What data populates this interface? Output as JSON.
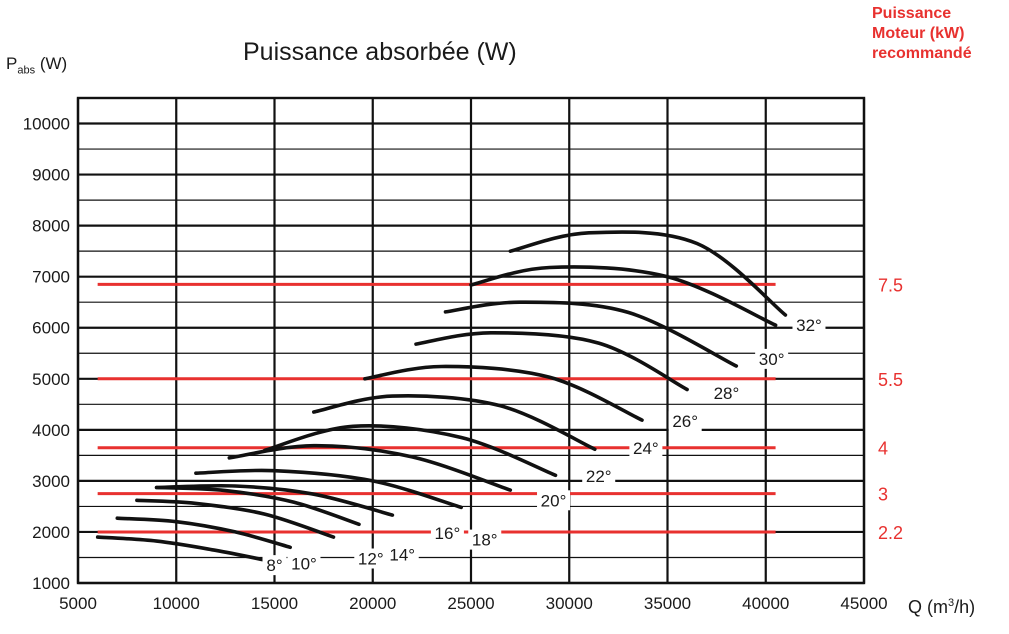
{
  "chart_data": {
    "type": "line",
    "title": "Puissance absorbée (W)",
    "ylabel": {
      "main": "P",
      "sub": "abs",
      "unit": " (W)"
    },
    "xlabel": {
      "main": "Q (m",
      "sup": "3",
      "unit": "/h)"
    },
    "side_title": [
      "Puissance",
      "Moteur (kW)",
      "recommandé"
    ],
    "xlim": [
      5000,
      45000
    ],
    "ylim": [
      1000,
      10500
    ],
    "x_ticks": [
      5000,
      10000,
      15000,
      20000,
      25000,
      30000,
      35000,
      40000,
      45000
    ],
    "x_tick_labels": [
      "5000",
      "10000",
      "15000",
      "20000",
      "25000",
      "30000",
      "35000",
      "40000",
      "45000"
    ],
    "y_ticks": [
      1000,
      2000,
      3000,
      4000,
      5000,
      6000,
      7000,
      8000,
      9000,
      10000
    ],
    "y_tick_labels": [
      "1000",
      "2000",
      "3000",
      "4000",
      "5000",
      "6000",
      "7000",
      "8000",
      "9000",
      "10000"
    ],
    "y_minor_step": 500,
    "series": [
      {
        "name": "8°",
        "x": [
          6000,
          9000,
          12000,
          14500
        ],
        "y": [
          1900,
          1820,
          1640,
          1450
        ],
        "label_at": [
          15000,
          1350
        ]
      },
      {
        "name": "10°",
        "x": [
          7000,
          10000,
          13000,
          15800
        ],
        "y": [
          2270,
          2200,
          2000,
          1700
        ],
        "label_at": [
          16500,
          1380
        ]
      },
      {
        "name": "12°",
        "x": [
          8000,
          11000,
          14500,
          18000
        ],
        "y": [
          2620,
          2560,
          2350,
          1900
        ],
        "label_at": [
          19900,
          1480
        ]
      },
      {
        "name": "14°",
        "x": [
          9000,
          12500,
          16000,
          19300
        ],
        "y": [
          2870,
          2810,
          2580,
          2150
        ],
        "label_at": [
          21500,
          1560
        ]
      },
      {
        "name": "16°",
        "x": [
          9000,
          13000,
          17000,
          21000
        ],
        "y": [
          2870,
          2900,
          2740,
          2330
        ],
        "label_at": [
          23800,
          1980
        ]
      },
      {
        "name": "18°",
        "x": [
          11000,
          15000,
          20000,
          24500
        ],
        "y": [
          3150,
          3200,
          3000,
          2480
        ],
        "label_at": [
          25700,
          1850
        ]
      },
      {
        "name": "20°",
        "x": [
          12700,
          17000,
          22000,
          27000
        ],
        "y": [
          3450,
          3690,
          3470,
          2820
        ],
        "label_at": [
          29200,
          2620
        ]
      },
      {
        "name": "22°",
        "x": [
          14500,
          19000,
          24500,
          29300
        ],
        "y": [
          3600,
          4070,
          3850,
          3110
        ],
        "label_at": [
          31500,
          3100
        ]
      },
      {
        "name": "24°",
        "x": [
          17000,
          21000,
          26500,
          31300
        ],
        "y": [
          4350,
          4660,
          4470,
          3620
        ],
        "label_at": [
          33900,
          3640
        ]
      },
      {
        "name": "26°",
        "x": [
          19600,
          23500,
          29000,
          33700
        ],
        "y": [
          5000,
          5240,
          5030,
          4190
        ],
        "label_at": [
          35900,
          4170
        ]
      },
      {
        "name": "28°",
        "x": [
          22200,
          26000,
          31500,
          36000
        ],
        "y": [
          5680,
          5900,
          5700,
          4790
        ],
        "label_at": [
          38000,
          4720
        ]
      },
      {
        "name": "30°",
        "x": [
          23700,
          27500,
          33000,
          38500
        ],
        "y": [
          6310,
          6500,
          6300,
          5250
        ],
        "label_at": [
          40300,
          5390
        ]
      },
      {
        "name": "32°",
        "x": [
          25000,
          29000,
          35000,
          40500
        ],
        "y": [
          6840,
          7180,
          7000,
          6050
        ],
        "label_at": [
          42200,
          6050
        ]
      },
      {
        "name": "",
        "x": [
          27000,
          31000,
          36500,
          41000
        ],
        "y": [
          7500,
          7860,
          7650,
          6250
        ],
        "label_at": null
      }
    ],
    "motor_lines": [
      {
        "kw": "7.5",
        "y": 6850
      },
      {
        "kw": "5.5",
        "y": 5000
      },
      {
        "kw": "4",
        "y": 3650
      },
      {
        "kw": "3",
        "y": 2750
      },
      {
        "kw": "2.2",
        "y": 2000
      }
    ],
    "motor_line_x": [
      6000,
      40500
    ],
    "colors": {
      "curves": "#111111",
      "motor": "#e8312f",
      "grid": "#111111"
    }
  }
}
